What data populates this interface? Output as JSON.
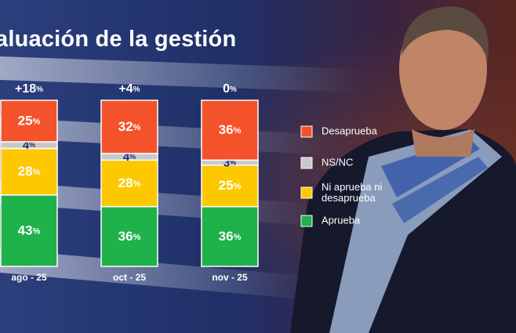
{
  "chart_data": {
    "type": "bar",
    "stacked": true,
    "title": "aluación de la gestión",
    "categories": [
      "ago - 25",
      "oct - 25",
      "nov - 25"
    ],
    "net_labels": [
      "+18",
      "+4",
      "0"
    ],
    "percent_symbol": "%",
    "series": [
      {
        "name": "Aprueba",
        "color": "#1fb14a",
        "values": [
          43,
          36,
          36
        ]
      },
      {
        "name": "Ni aprueba ni desaprueba",
        "color": "#fdc800",
        "values": [
          28,
          28,
          25
        ]
      },
      {
        "name": "NS/NC",
        "color": "#c9c9c9",
        "values": [
          4,
          4,
          3
        ]
      },
      {
        "name": "Desaprueba",
        "color": "#f4522a",
        "values": [
          25,
          32,
          36
        ]
      }
    ],
    "legend": [
      {
        "label": "Desaprueba",
        "color": "#f4522a"
      },
      {
        "label": "NS/NC",
        "color": "#c9c9c9"
      },
      {
        "label": "Ni aprueba ni desaprueba",
        "color": "#fdc800"
      },
      {
        "label": "Aprueba",
        "color": "#1fb14a"
      }
    ],
    "ylim": [
      0,
      100
    ],
    "legend_position": "right"
  }
}
